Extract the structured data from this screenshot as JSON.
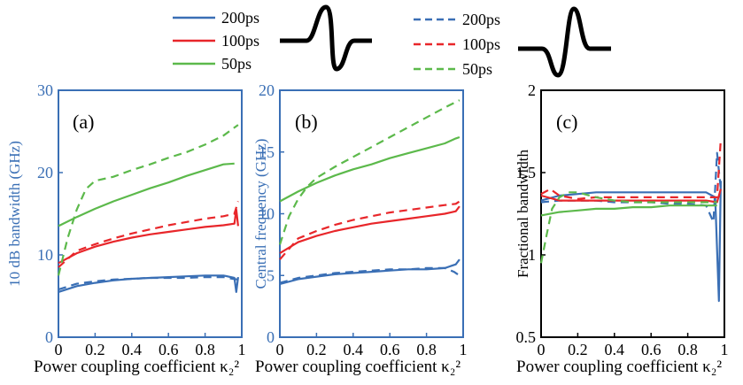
{
  "legend": {
    "solid": [
      {
        "label": "200ps",
        "color": "#3a6fb5"
      },
      {
        "label": "100ps",
        "color": "#e8262a"
      },
      {
        "label": "50ps",
        "color": "#5cb94b"
      }
    ],
    "dashed": [
      {
        "label": "200ps",
        "color": "#3a6fb5"
      },
      {
        "label": "100ps",
        "color": "#e8262a"
      },
      {
        "label": "50ps",
        "color": "#5cb94b"
      }
    ]
  },
  "colors": {
    "blue": "#3a6fb5",
    "red": "#e8262a",
    "green": "#5cb94b",
    "axis_blue": "#3a6fb5"
  },
  "chart_data": [
    {
      "type": "line",
      "panel": "(a)",
      "xlabel": "Power coupling coefficient κ₂²",
      "ylabel": "10 dB bandwidth (GHz)",
      "xlim": [
        0,
        1
      ],
      "ylim": [
        0,
        30
      ],
      "xticks": [
        "0",
        "0.2",
        "0.4",
        "0.6",
        "0.8",
        "1"
      ],
      "yticks": [
        "0",
        "10",
        "20",
        "30"
      ],
      "series": [
        {
          "color": "blue",
          "style": "solid",
          "x": [
            0,
            0.1,
            0.2,
            0.3,
            0.4,
            0.5,
            0.6,
            0.7,
            0.8,
            0.9,
            0.96,
            0.97,
            0.98
          ],
          "y": [
            5.5,
            6.2,
            6.6,
            6.9,
            7.1,
            7.2,
            7.3,
            7.4,
            7.5,
            7.5,
            7.2,
            5.5,
            7.3
          ]
        },
        {
          "color": "blue",
          "style": "dashed",
          "x": [
            0,
            0.1,
            0.2,
            0.3,
            0.4,
            0.5,
            0.6,
            0.7,
            0.8,
            0.9,
            0.95,
            0.98
          ],
          "y": [
            5.8,
            6.5,
            6.8,
            7.0,
            7.1,
            7.2,
            7.2,
            7.2,
            7.3,
            7.3,
            7.1,
            7.0
          ]
        },
        {
          "color": "red",
          "style": "solid",
          "x": [
            0,
            0.1,
            0.2,
            0.3,
            0.4,
            0.5,
            0.6,
            0.7,
            0.8,
            0.9,
            0.96,
            0.97,
            0.98
          ],
          "y": [
            9.0,
            10.2,
            11.0,
            11.6,
            12.1,
            12.5,
            12.8,
            13.1,
            13.4,
            13.6,
            13.8,
            15.5,
            13.5
          ]
        },
        {
          "color": "red",
          "style": "dashed",
          "x": [
            0,
            0.1,
            0.2,
            0.3,
            0.4,
            0.5,
            0.6,
            0.7,
            0.8,
            0.9,
            0.96,
            0.98
          ],
          "y": [
            8.5,
            10.5,
            11.3,
            12.0,
            12.6,
            13.1,
            13.6,
            14.0,
            14.4,
            14.7,
            15.0,
            16.5
          ]
        },
        {
          "color": "green",
          "style": "solid",
          "x": [
            0,
            0.1,
            0.2,
            0.3,
            0.4,
            0.5,
            0.6,
            0.7,
            0.8,
            0.9,
            0.96
          ],
          "y": [
            13.5,
            14.6,
            15.6,
            16.5,
            17.3,
            18.1,
            18.8,
            19.6,
            20.3,
            21.0,
            21.1
          ]
        },
        {
          "color": "green",
          "style": "dashed",
          "x": [
            0,
            0.05,
            0.1,
            0.15,
            0.2,
            0.3,
            0.4,
            0.5,
            0.6,
            0.7,
            0.8,
            0.9,
            0.98
          ],
          "y": [
            7.5,
            12.0,
            15.5,
            18.0,
            19.0,
            19.5,
            20.3,
            21.0,
            21.8,
            22.5,
            23.4,
            24.5,
            25.8
          ]
        }
      ]
    },
    {
      "type": "line",
      "panel": "(b)",
      "xlabel": "Power coupling coefficient κ₂²",
      "ylabel": "Central frequency (GHz)",
      "xlim": [
        0,
        1
      ],
      "ylim": [
        0,
        20
      ],
      "xticks": [
        "0",
        "0.2",
        "0.4",
        "0.6",
        "0.8",
        "1"
      ],
      "yticks": [
        "0",
        "5",
        "10",
        "15",
        "20"
      ],
      "series": [
        {
          "color": "blue",
          "style": "solid",
          "x": [
            0,
            0.1,
            0.2,
            0.3,
            0.4,
            0.5,
            0.6,
            0.7,
            0.8,
            0.9,
            0.96,
            0.98
          ],
          "y": [
            4.3,
            4.7,
            4.9,
            5.1,
            5.2,
            5.3,
            5.4,
            5.5,
            5.5,
            5.6,
            5.9,
            6.3
          ]
        },
        {
          "color": "blue",
          "style": "dashed",
          "x": [
            0,
            0.1,
            0.2,
            0.3,
            0.4,
            0.5,
            0.6,
            0.7,
            0.8,
            0.9,
            0.95,
            0.98
          ],
          "y": [
            4.4,
            4.8,
            5.0,
            5.2,
            5.3,
            5.4,
            5.5,
            5.5,
            5.6,
            5.6,
            5.3,
            5.0
          ]
        },
        {
          "color": "red",
          "style": "solid",
          "x": [
            0,
            0.1,
            0.2,
            0.3,
            0.4,
            0.5,
            0.6,
            0.7,
            0.8,
            0.9,
            0.96,
            0.98
          ],
          "y": [
            6.8,
            7.7,
            8.2,
            8.6,
            8.9,
            9.2,
            9.4,
            9.6,
            9.8,
            10.0,
            10.2,
            10.6
          ]
        },
        {
          "color": "red",
          "style": "dashed",
          "x": [
            0,
            0.1,
            0.2,
            0.3,
            0.4,
            0.5,
            0.6,
            0.7,
            0.8,
            0.9,
            0.96,
            0.98
          ],
          "y": [
            6.3,
            8.0,
            8.6,
            9.1,
            9.5,
            9.8,
            10.1,
            10.3,
            10.5,
            10.7,
            10.8,
            11.0
          ]
        },
        {
          "color": "green",
          "style": "solid",
          "x": [
            0,
            0.1,
            0.2,
            0.3,
            0.4,
            0.5,
            0.6,
            0.7,
            0.8,
            0.9,
            0.96,
            0.98
          ],
          "y": [
            11.0,
            11.8,
            12.5,
            13.1,
            13.6,
            14.0,
            14.5,
            14.9,
            15.3,
            15.7,
            16.1,
            16.2
          ]
        },
        {
          "color": "green",
          "style": "dashed",
          "x": [
            0,
            0.05,
            0.1,
            0.15,
            0.2,
            0.3,
            0.4,
            0.5,
            0.6,
            0.7,
            0.8,
            0.9,
            0.98
          ],
          "y": [
            7.5,
            9.8,
            11.2,
            12.2,
            12.9,
            13.8,
            14.6,
            15.4,
            16.2,
            17.0,
            17.8,
            18.6,
            19.2
          ]
        }
      ]
    },
    {
      "type": "line",
      "panel": "(c)",
      "xlabel": "Power coupling coefficient κ₂²",
      "ylabel": "Fractional bandwidth",
      "xlim": [
        0,
        1
      ],
      "ylim": [
        0.5,
        2
      ],
      "xticks": [
        "0",
        "0.2",
        "0.4",
        "0.6",
        "0.8",
        "1"
      ],
      "yticks": [
        "0.5",
        "1",
        "1.5",
        "2"
      ],
      "series": [
        {
          "color": "blue",
          "style": "solid",
          "x": [
            0,
            0.1,
            0.2,
            0.3,
            0.4,
            0.5,
            0.6,
            0.7,
            0.8,
            0.9,
            0.95,
            0.97,
            0.98
          ],
          "y": [
            1.33,
            1.36,
            1.37,
            1.38,
            1.38,
            1.38,
            1.38,
            1.38,
            1.38,
            1.38,
            1.35,
            0.72,
            1.45
          ]
        },
        {
          "color": "blue",
          "style": "dashed",
          "x": [
            0,
            0.1,
            0.2,
            0.3,
            0.4,
            0.5,
            0.6,
            0.7,
            0.8,
            0.9,
            0.94,
            0.96,
            0.98
          ],
          "y": [
            1.32,
            1.33,
            1.33,
            1.33,
            1.32,
            1.32,
            1.32,
            1.31,
            1.31,
            1.3,
            1.2,
            1.62,
            1.4
          ]
        },
        {
          "color": "red",
          "style": "solid",
          "x": [
            0,
            0.1,
            0.2,
            0.3,
            0.4,
            0.5,
            0.6,
            0.7,
            0.8,
            0.9,
            0.96,
            0.98
          ],
          "y": [
            1.36,
            1.33,
            1.33,
            1.33,
            1.33,
            1.33,
            1.33,
            1.33,
            1.33,
            1.33,
            1.32,
            1.4
          ]
        },
        {
          "color": "red",
          "style": "dashed",
          "x": [
            0,
            0.05,
            0.1,
            0.2,
            0.3,
            0.4,
            0.5,
            0.6,
            0.7,
            0.8,
            0.9,
            0.96,
            0.98
          ],
          "y": [
            1.37,
            1.4,
            1.36,
            1.34,
            1.35,
            1.35,
            1.35,
            1.35,
            1.35,
            1.35,
            1.35,
            1.35,
            1.7
          ]
        },
        {
          "color": "green",
          "style": "solid",
          "x": [
            0,
            0.1,
            0.2,
            0.3,
            0.4,
            0.5,
            0.6,
            0.7,
            0.8,
            0.9,
            0.96
          ],
          "y": [
            1.24,
            1.26,
            1.27,
            1.28,
            1.28,
            1.29,
            1.29,
            1.3,
            1.3,
            1.3,
            1.3
          ]
        },
        {
          "color": "green",
          "style": "dashed",
          "x": [
            0,
            0.03,
            0.06,
            0.1,
            0.15,
            0.2,
            0.3,
            0.4,
            0.5,
            0.6,
            0.7,
            0.8,
            0.9,
            0.96
          ],
          "y": [
            0.95,
            1.12,
            1.28,
            1.35,
            1.38,
            1.38,
            1.35,
            1.33,
            1.32,
            1.32,
            1.32,
            1.32,
            1.32,
            1.32
          ]
        }
      ]
    }
  ]
}
